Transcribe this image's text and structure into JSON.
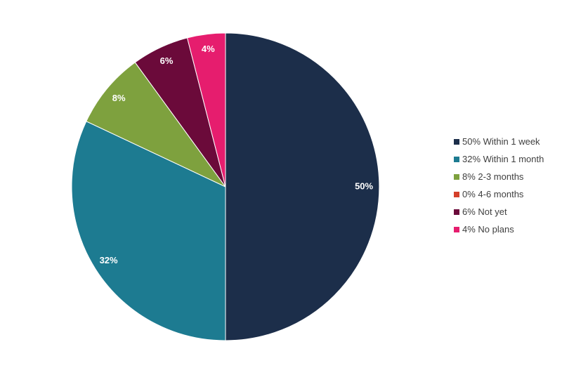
{
  "chart_data": {
    "type": "pie",
    "title": "",
    "legend_position": "right",
    "slices": [
      {
        "label": "50% Within 1 week",
        "value": 50,
        "data_label": "50%",
        "color": "#1c2e4a"
      },
      {
        "label": "32% Within 1 month",
        "value": 32,
        "data_label": "32%",
        "color": "#1d7b91"
      },
      {
        "label": "8% 2-3 months",
        "value": 8,
        "data_label": "8%",
        "color": "#7ea13e"
      },
      {
        "label": "0% 4-6 months",
        "value": 0,
        "data_label": "",
        "color": "#d4402a"
      },
      {
        "label": "6% Not yet",
        "value": 6,
        "data_label": "6%",
        "color": "#6b0a3a"
      },
      {
        "label": "4% No plans",
        "value": 4,
        "data_label": "4%",
        "color": "#e61d6e"
      }
    ]
  }
}
